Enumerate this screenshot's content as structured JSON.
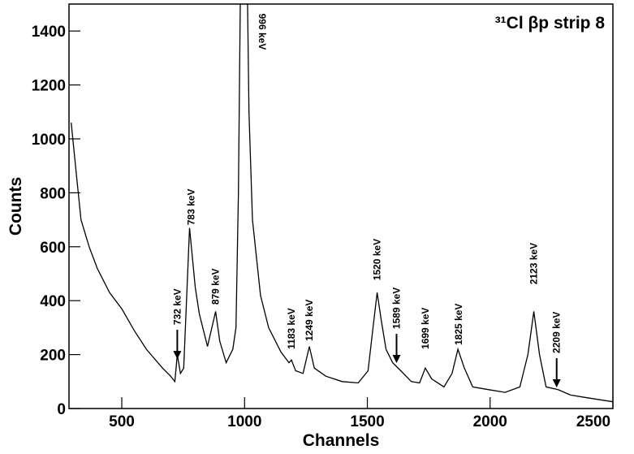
{
  "chart_data": {
    "type": "line",
    "title": "³¹Cl βp strip 8",
    "xlabel": "Channels",
    "ylabel": "Counts",
    "xlim": [
      285,
      2500
    ],
    "xticks": [
      500,
      1000,
      1500,
      2000,
      2500
    ],
    "ylim": [
      0,
      1500
    ],
    "yticks": [
      0,
      200,
      400,
      600,
      800,
      1000,
      1200,
      1400
    ],
    "color": "#000000",
    "x": [
      294,
      317,
      334,
      367,
      400,
      450,
      500,
      550,
      600,
      666,
      699,
      716,
      726,
      739,
      752,
      776,
      799,
      816,
      849,
      882,
      899,
      925,
      952,
      965,
      975,
      988,
      1005,
      1018,
      1032,
      1065,
      1098,
      1148,
      1181,
      1191,
      1208,
      1238,
      1264,
      1284,
      1331,
      1397,
      1463,
      1503,
      1523,
      1540,
      1556,
      1576,
      1603,
      1636,
      1679,
      1713,
      1736,
      1762,
      1812,
      1845,
      1869,
      1895,
      1929,
      1995,
      2061,
      2121,
      2154,
      2178,
      2201,
      2228,
      2277,
      2327,
      2394,
      2500
    ],
    "values": [
      1060,
      850,
      700,
      600,
      520,
      430,
      370,
      290,
      220,
      150,
      120,
      100,
      200,
      130,
      150,
      670,
      450,
      350,
      230,
      360,
      250,
      170,
      220,
      300,
      800,
      2000,
      2000,
      1100,
      700,
      420,
      300,
      210,
      170,
      180,
      140,
      130,
      230,
      150,
      120,
      100,
      95,
      140,
      300,
      430,
      330,
      220,
      170,
      140,
      100,
      95,
      150,
      110,
      80,
      130,
      220,
      150,
      80,
      70,
      60,
      80,
      200,
      360,
      200,
      80,
      70,
      50,
      40,
      25
    ],
    "annotations": [
      {
        "text": "732 keV",
        "x": 726,
        "y": 310,
        "arrow": true
      },
      {
        "text": "783 keV",
        "x": 782,
        "y": 680
      },
      {
        "text": "879 keV",
        "x": 882,
        "y": 385
      },
      {
        "text": "996 keV",
        "x": 1058,
        "y": 1465,
        "downward": true
      },
      {
        "text": "1183 keV",
        "x": 1191,
        "y": 220
      },
      {
        "text": "1249 keV",
        "x": 1264,
        "y": 250
      },
      {
        "text": "1520 keV",
        "x": 1540,
        "y": 475
      },
      {
        "text": "1589 keV",
        "x": 1619,
        "y": 295,
        "arrow": true
      },
      {
        "text": "1699 keV",
        "x": 1736,
        "y": 220
      },
      {
        "text": "1825 keV",
        "x": 1872,
        "y": 235
      },
      {
        "text": "2123 keV",
        "x": 2178,
        "y": 460
      },
      {
        "text": "2209 keV",
        "x": 2271,
        "y": 205,
        "arrow": true
      }
    ]
  }
}
